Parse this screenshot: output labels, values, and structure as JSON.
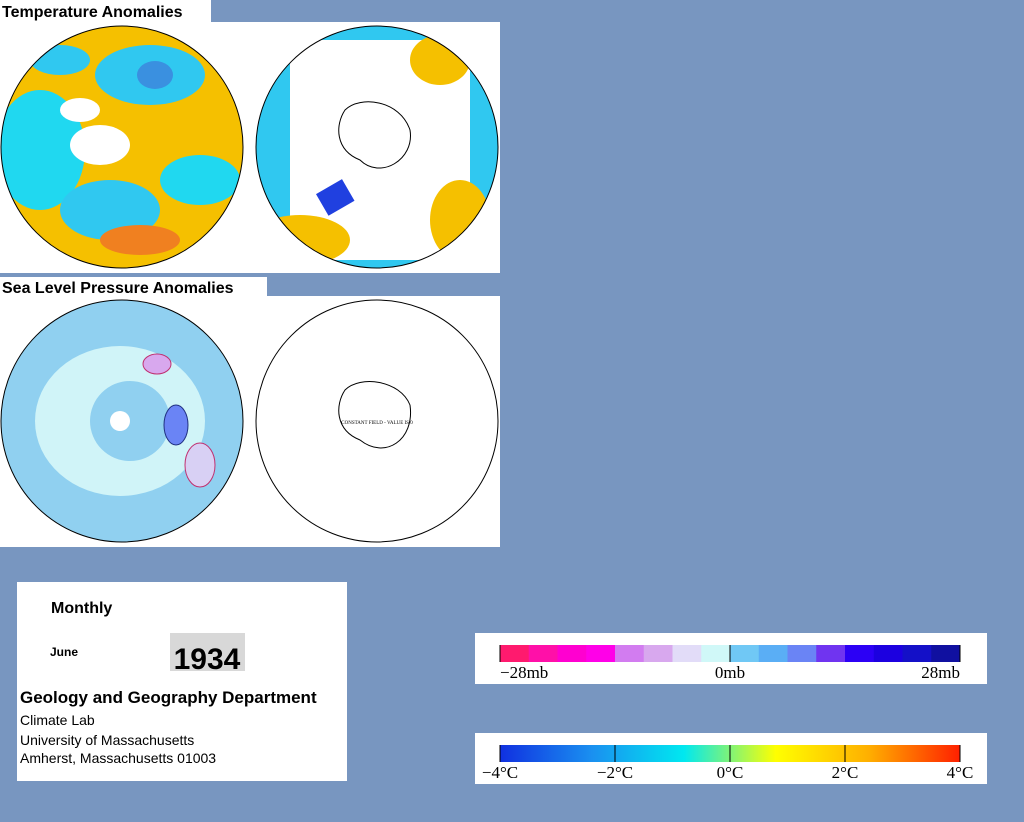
{
  "titles": {
    "temperature": "Temperature Anomalies",
    "pressure": "Sea Level Pressure Anomalies"
  },
  "map_note": "CONSTANT FIELD - VALUE IS 0",
  "info": {
    "period": "Monthly",
    "month": "June",
    "year": "1934",
    "department": "Geology and Geography Department",
    "lines": [
      "Climate Lab",
      "University of Massachusetts",
      "Amherst, Massachusetts 01003"
    ]
  },
  "pressure_scale": {
    "labels": [
      "−28mb",
      "0mb",
      "28mb"
    ],
    "colors": [
      "#ff1a6e",
      "#ff10a8",
      "#ff00d0",
      "#ff00e8",
      "#d27cf0",
      "#d8a8ee",
      "#e2dcf8",
      "#d0f8f8",
      "#70c8f5",
      "#5aaef5",
      "#6a84f5",
      "#7034f0",
      "#2c00f5",
      "#1c00e0",
      "#1410c8",
      "#1010a0"
    ]
  },
  "temperature_scale": {
    "labels": [
      "−4°C",
      "−2°C",
      "0°C",
      "2°C",
      "4°C"
    ],
    "colors": [
      "#1030e0",
      "#1a90f0",
      "#00e8f0",
      "#ffff00",
      "#ffb000",
      "#ff2000"
    ]
  }
}
